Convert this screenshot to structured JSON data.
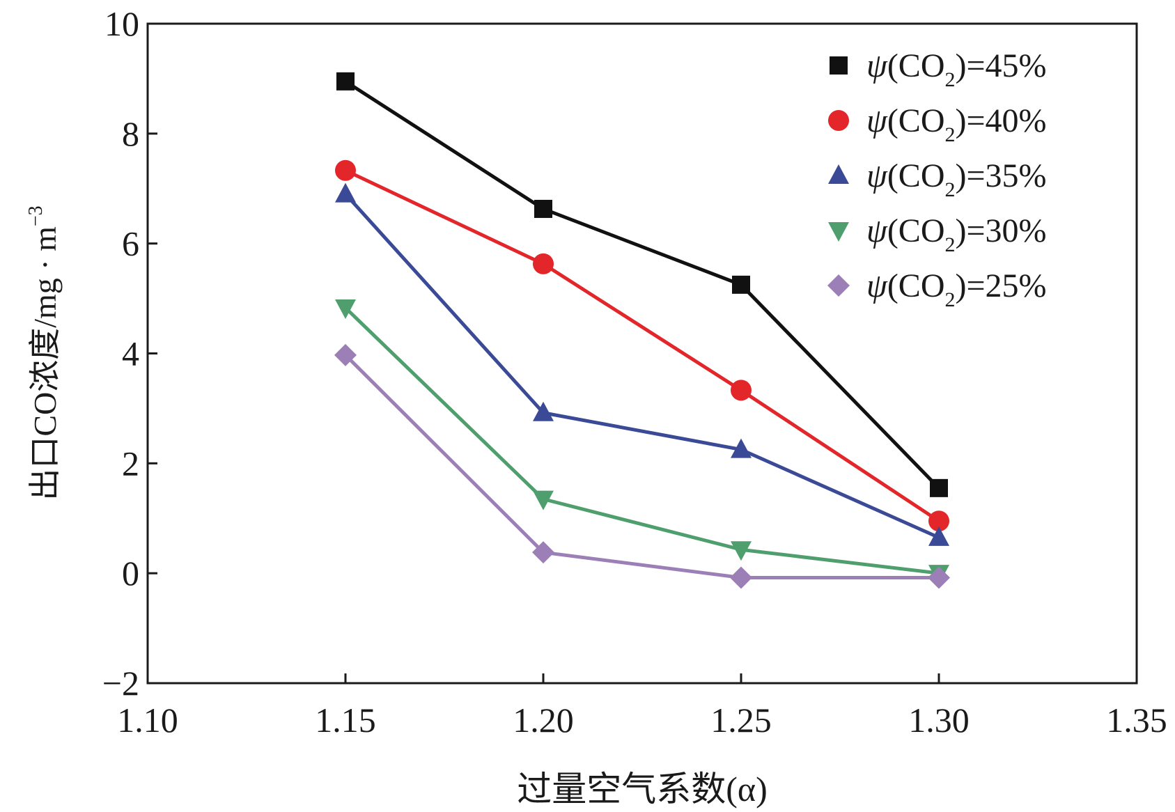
{
  "chart_data": {
    "type": "line",
    "title": "",
    "xlabel": "过量空气系数(α)",
    "ylabel": "出口CO浓度/mg · m⁻³",
    "ylabel_parts": {
      "main": "出口CO浓度/mg · m",
      "sup": "−3"
    },
    "xlim": [
      1.1,
      1.35
    ],
    "ylim": [
      -2,
      10
    ],
    "x_ticks": [
      "1.10",
      "1.15",
      "1.20",
      "1.25",
      "1.30",
      "1.35"
    ],
    "y_ticks": [
      "−2",
      "0",
      "2",
      "4",
      "6",
      "8",
      "10"
    ],
    "x": [
      1.15,
      1.2,
      1.25,
      1.3
    ],
    "legend_position": "top-right",
    "series": [
      {
        "name": "ψ(CO2)=45%",
        "label_parts": {
          "psi": "ψ",
          "pre": "(CO",
          "sub": "2",
          "post": ")=45%"
        },
        "marker": "square",
        "color": "#111111",
        "values": [
          8.95,
          6.63,
          5.25,
          1.55
        ]
      },
      {
        "name": "ψ(CO2)=40%",
        "label_parts": {
          "psi": "ψ",
          "pre": "(CO",
          "sub": "2",
          "post": ")=40%"
        },
        "marker": "circle",
        "color": "#e3262a",
        "values": [
          7.33,
          5.63,
          3.33,
          0.95
        ]
      },
      {
        "name": "ψ(CO2)=35%",
        "label_parts": {
          "psi": "ψ",
          "pre": "(CO",
          "sub": "2",
          "post": ")=35%"
        },
        "marker": "triangle",
        "color": "#3b4a97",
        "values": [
          6.9,
          2.92,
          2.25,
          0.65
        ]
      },
      {
        "name": "ψ(CO2)=30%",
        "label_parts": {
          "psi": "ψ",
          "pre": "(CO",
          "sub": "2",
          "post": ")=30%"
        },
        "marker": "triangle-down",
        "color": "#4f9e6d",
        "values": [
          4.83,
          1.35,
          0.43,
          0.0
        ]
      },
      {
        "name": "ψ(CO2)=25%",
        "label_parts": {
          "psi": "ψ",
          "pre": "(CO",
          "sub": "2",
          "post": ")=25%"
        },
        "marker": "diamond",
        "color": "#9b7fb6",
        "values": [
          3.97,
          0.38,
          -0.08,
          -0.08
        ]
      }
    ]
  }
}
